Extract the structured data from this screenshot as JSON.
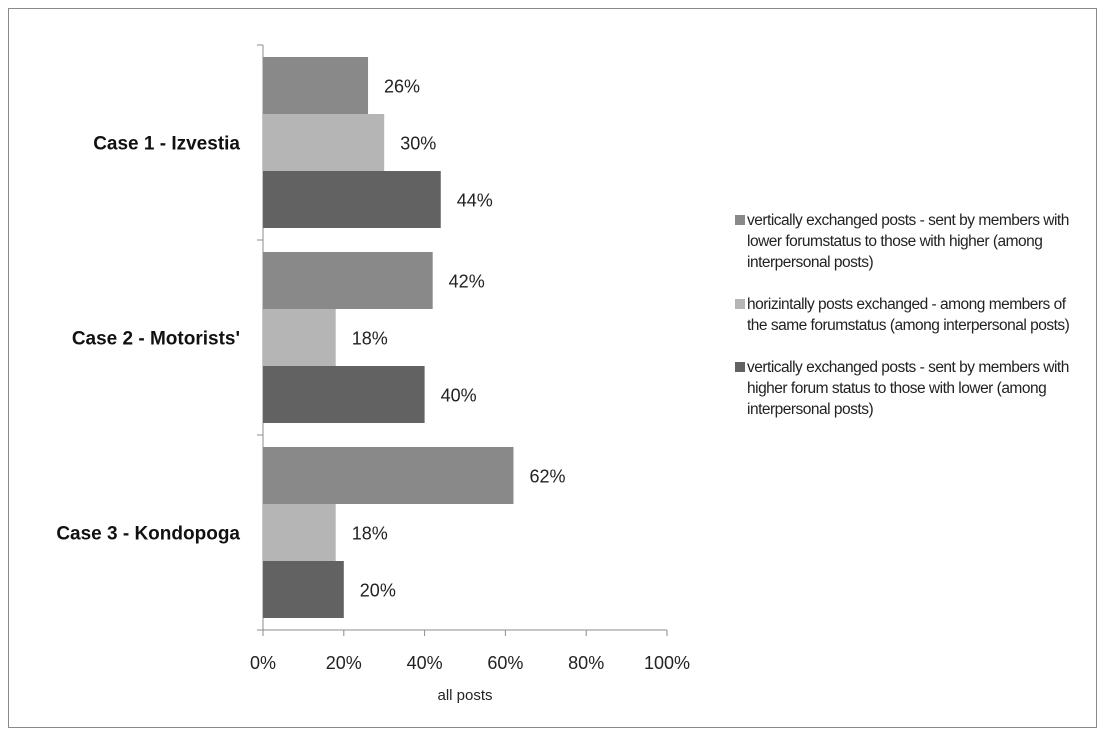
{
  "chart_data": {
    "type": "bar",
    "orientation": "horizontal",
    "categories": [
      "Case 1 - Izvestia",
      "Case 2 - Motorists'",
      "Case 3 - Kondopoga"
    ],
    "series": [
      {
        "name": "vertically exchanged posts - sent by members with lower forumstatus to those with higher (among interpersonal posts)",
        "values": [
          26,
          42,
          62
        ],
        "labels": [
          "26%",
          "42%",
          "62%"
        ],
        "color": "#898989"
      },
      {
        "name": "horizintally posts exchanged - among members of the same forumstatus (among interpersonal posts)",
        "values": [
          30,
          18,
          18
        ],
        "labels": [
          "30%",
          "18%",
          "18%"
        ],
        "color": "#b5b5b5"
      },
      {
        "name": "vertically exchanged posts - sent by members with higher forum status to those with lower (among interpersonal posts)",
        "values": [
          44,
          40,
          20
        ],
        "labels": [
          "44%",
          "40%",
          "20%"
        ],
        "color": "#626262"
      }
    ],
    "xlabel": "all posts",
    "ylabel": "",
    "xlim": [
      0,
      100
    ],
    "xticks": [
      0,
      20,
      40,
      60,
      80,
      100
    ],
    "xtick_labels": [
      "0%",
      "20%",
      "40%",
      "60%",
      "80%",
      "100%"
    ],
    "grid": false,
    "legend_position": "right"
  }
}
